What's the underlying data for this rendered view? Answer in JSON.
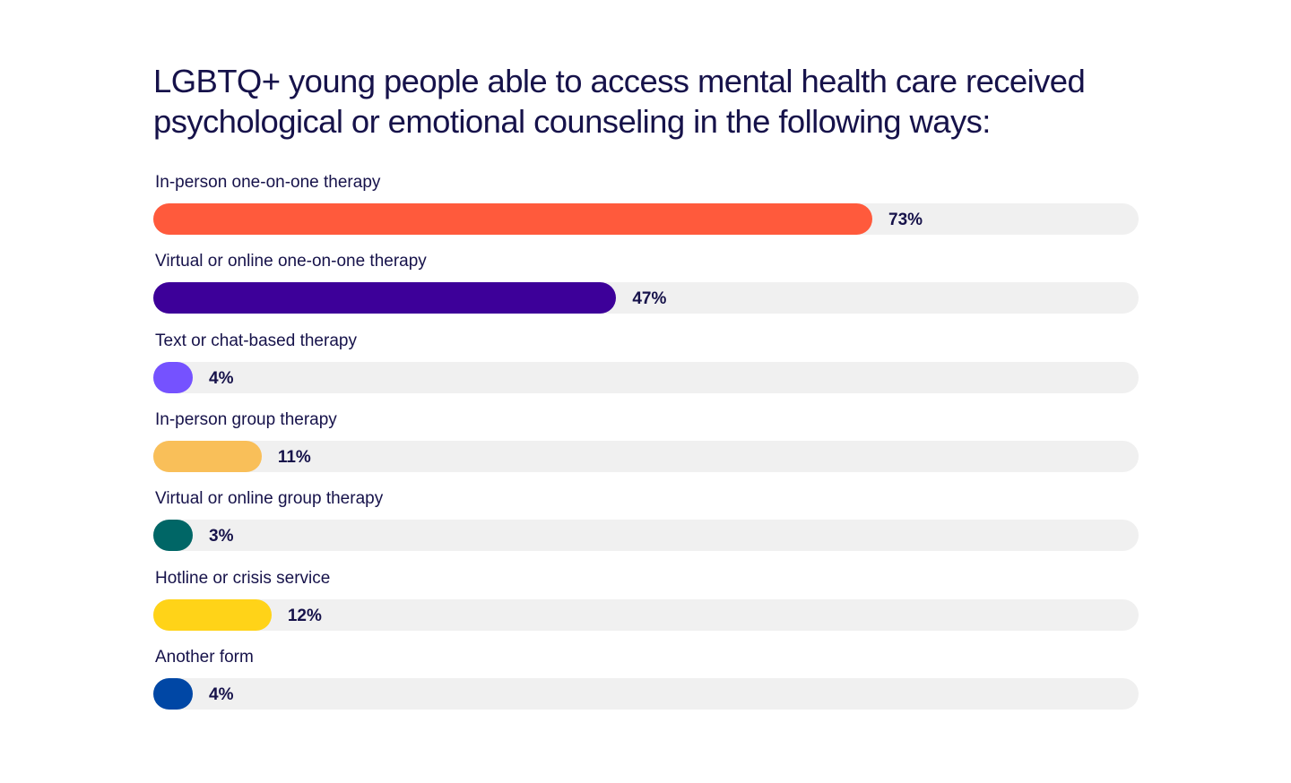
{
  "chart_data": {
    "type": "bar",
    "orientation": "horizontal",
    "title": "LGBTQ+ young people able to access mental health care received psychological or emotional counseling in the following ways:",
    "title_lines": [
      "LGBTQ+ young people able to access mental health care received",
      "psychological or emotional counseling in the following ways:"
    ],
    "categories": [
      "In-person one-on-one therapy",
      "Virtual or online one-on-one therapy",
      "Text or chat-based therapy",
      "In-person group therapy",
      "Virtual or online group therapy",
      "Hotline or crisis service",
      "Another form"
    ],
    "values": [
      73,
      47,
      4,
      11,
      3,
      12,
      4
    ],
    "value_labels": [
      "73%",
      "47%",
      "4%",
      "11%",
      "3%",
      "12%",
      "4%"
    ],
    "unit": "%",
    "xlim": [
      0,
      100
    ],
    "grid": false,
    "legend": "none",
    "colors": [
      "#ff5a3c",
      "#3d0099",
      "#7552ff",
      "#f9bf59",
      "#006666",
      "#ffd318",
      "#0047a5"
    ],
    "track_color": "#f0f0f0",
    "text_color": "#16124a"
  }
}
